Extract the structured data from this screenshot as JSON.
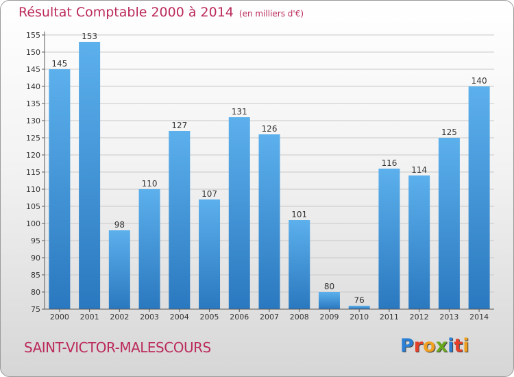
{
  "chart_data": {
    "type": "bar",
    "title": "Résultat Comptable 2000 à 2014",
    "subtitle": "(en milliers d'€)",
    "categories": [
      "2000",
      "2001",
      "2002",
      "2003",
      "2004",
      "2005",
      "2006",
      "2007",
      "2008",
      "2009",
      "2010",
      "2011",
      "2012",
      "2013",
      "2014"
    ],
    "values": [
      145,
      153,
      98,
      110,
      127,
      107,
      131,
      126,
      101,
      80,
      76,
      116,
      114,
      125,
      140
    ],
    "ylim": [
      75,
      155
    ],
    "yticks": [
      75,
      80,
      85,
      90,
      95,
      100,
      105,
      110,
      115,
      120,
      125,
      130,
      135,
      140,
      145,
      150,
      155
    ],
    "grid": true,
    "bar_color": "#4a9fe0"
  },
  "footer": {
    "place": "SAINT-VICTOR-MALESCOURS",
    "brand_letters": [
      "P",
      "r",
      "o",
      "x",
      "i",
      "t",
      "i"
    ],
    "brand_colors": [
      "#2b7fd4",
      "#e5402a",
      "#f0a020",
      "#6aa820",
      "#2b7fd4",
      "#e5402a",
      "#f0a020"
    ]
  }
}
